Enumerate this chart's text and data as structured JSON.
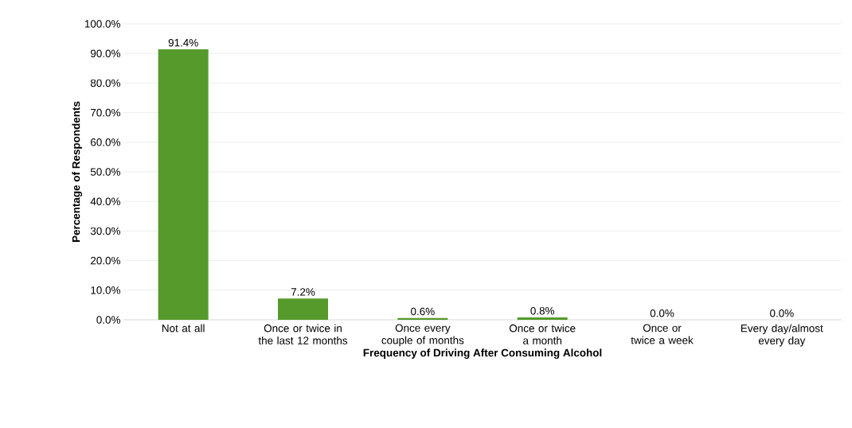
{
  "chart_data": {
    "type": "bar",
    "xlabel": "Frequency of Driving After Consuming Alcohol",
    "ylabel": "Percentage of Respondents",
    "categories": [
      "Not at all",
      "Once or twice in the last 12 months",
      "Once every couple of months",
      "Once or twice a month",
      "Once or twice a week",
      "Every day/almost every day"
    ],
    "values": [
      91.4,
      7.2,
      0.6,
      0.8,
      0.0,
      0.0
    ],
    "value_labels": [
      "91.4%",
      "7.2%",
      "0.6%",
      "0.8%",
      "0.0%",
      "0.0%"
    ],
    "color": "#559a2b",
    "ylim": [
      0,
      100
    ],
    "yticks": [
      {
        "value": 0,
        "label": "0.0%"
      },
      {
        "value": 10,
        "label": "10.0%"
      },
      {
        "value": 20,
        "label": "20.0%"
      },
      {
        "value": 30,
        "label": "30.0%"
      },
      {
        "value": 40,
        "label": "40.0%"
      },
      {
        "value": 50,
        "label": "50.0%"
      },
      {
        "value": 60,
        "label": "60.0%"
      },
      {
        "value": 70,
        "label": "70.0%"
      },
      {
        "value": 80,
        "label": "80.0%"
      },
      {
        "value": 90,
        "label": "90.0%"
      },
      {
        "value": 100,
        "label": "100.0%"
      }
    ],
    "grid": "y"
  }
}
